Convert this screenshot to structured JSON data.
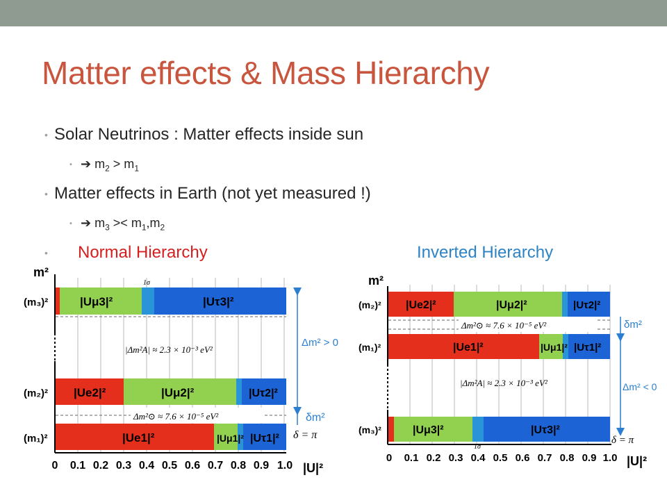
{
  "slide": {
    "title": "Matter effects & Mass Hierarchy",
    "bullets": {
      "b1": "Solar Neutrinos : Matter effects inside sun",
      "b1a": {
        "pre": "m",
        "sub1": "2",
        "mid": " > m",
        "sub2": "1"
      },
      "b2": "Matter effects in Earth (not yet measured !)",
      "b2a": {
        "pre": "m",
        "sub1": "3",
        "mid": " >< m",
        "sub2": "1",
        "mid2": ",m",
        "sub3": "2"
      },
      "arrow": "",
      "dot": "•"
    },
    "normal_label": "Normal Hierarchy",
    "inverted_label": "Inverted Hierarchy"
  },
  "colors": {
    "title": "#c8553d",
    "e": "#e32f1b",
    "mu": "#92d050",
    "tau": "#1c63d5",
    "band": "#2a94d8",
    "normal": "#d51f1f",
    "inverted": "#2c83c6",
    "bar_top": "#8f9a90"
  },
  "diagram": {
    "axis_ticks": [
      "0",
      "0.1",
      "0.2",
      "0.3",
      "0.4",
      "0.5",
      "0.6",
      "0.7",
      "0.8",
      "0.9",
      "1.0"
    ],
    "axis_label": "|U|²",
    "y_label": "m²",
    "delta": "δ = π",
    "sigma": "1σ",
    "normal": {
      "m3": "(m₃)²",
      "m2": "(m₂)²",
      "m1": "(m₁)²",
      "m3_mu": "|Uμ3|²",
      "m3_tau": "|Uτ3|²",
      "m2_e": "|Ue2|²",
      "m2_mu": "|Uμ2|²",
      "m2_tau": "|Uτ2|²",
      "m1_e": "|Ue1|²",
      "m1_mu": "|Uμ1|²",
      "m1_tau": "|Uτ1|²",
      "atm": "|Δm²A| ≈ 2.3 × 10⁻³ eV²",
      "sol": "Δm²⊙ ≈ 7.6 × 10⁻⁵ eV²",
      "big": "Δm² > 0",
      "small": "δm²"
    },
    "inverted": {
      "m2": "(m₂)²",
      "m1": "(m₁)²",
      "m3": "(m₃)²",
      "m2_e": "|Ue2|²",
      "m2_mu": "|Uμ2|²",
      "m2_tau": "|Uτ2|²",
      "m1_e": "|Ue1|²",
      "m1_mu": "|Uμ1|²",
      "m1_tau": "|Uτ1|²",
      "m3_mu": "|Uμ3|²",
      "m3_tau": "|Uτ3|²",
      "atm": "|Δm²A| ≈ 2.3 × 10⁻³ eV²",
      "sol": "Δm²⊙ ≈ 7.6 × 10⁻⁵ eV²",
      "big": "Δm² < 0",
      "small": "δm²"
    }
  }
}
